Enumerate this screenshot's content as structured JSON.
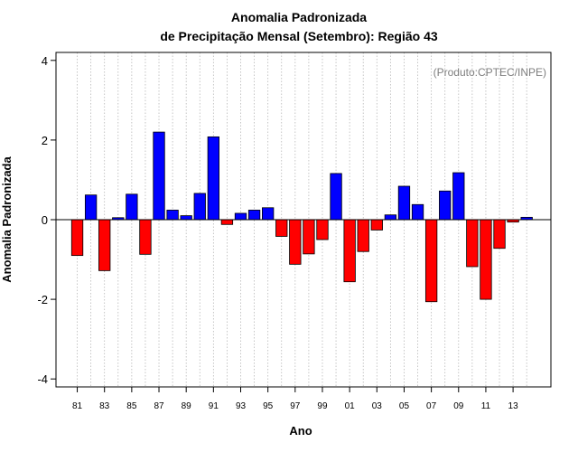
{
  "chart_data": {
    "type": "bar",
    "title": "Anomalia Padronizada",
    "subtitle": "de Precipitação Mensal (Setembro): Região 43",
    "annotation": "(Produto:CPTEC/INPE)",
    "xlabel": "Ano",
    "ylabel": "Anomalia Padronizada",
    "ylim": [
      -4.2,
      4.2
    ],
    "yticks": [
      -4,
      -2,
      0,
      2,
      4
    ],
    "positive_color": "#0000ff",
    "negative_color": "#ff0000",
    "grid": "vertical dotted",
    "categories": [
      "81",
      "82",
      "83",
      "84",
      "85",
      "86",
      "87",
      "88",
      "89",
      "90",
      "91",
      "92",
      "93",
      "94",
      "95",
      "96",
      "97",
      "98",
      "99",
      "00",
      "01",
      "02",
      "03",
      "04",
      "05",
      "06",
      "07",
      "08",
      "09",
      "10",
      "11",
      "12",
      "13",
      "14"
    ],
    "tick_labels": [
      "81",
      "83",
      "85",
      "87",
      "89",
      "91",
      "93",
      "95",
      "97",
      "99",
      "01",
      "03",
      "05",
      "07",
      "09",
      "11",
      "13"
    ],
    "values": [
      -0.9,
      0.62,
      -1.28,
      0.05,
      0.64,
      -0.87,
      2.2,
      0.24,
      0.1,
      0.66,
      2.08,
      -0.12,
      0.16,
      0.24,
      0.3,
      -0.42,
      -1.12,
      -0.86,
      -0.5,
      1.16,
      -1.56,
      -0.8,
      -0.26,
      0.12,
      0.84,
      0.38,
      -2.06,
      0.72,
      1.18,
      -1.18,
      -2.0,
      -0.72,
      -0.06,
      0.06
    ]
  }
}
